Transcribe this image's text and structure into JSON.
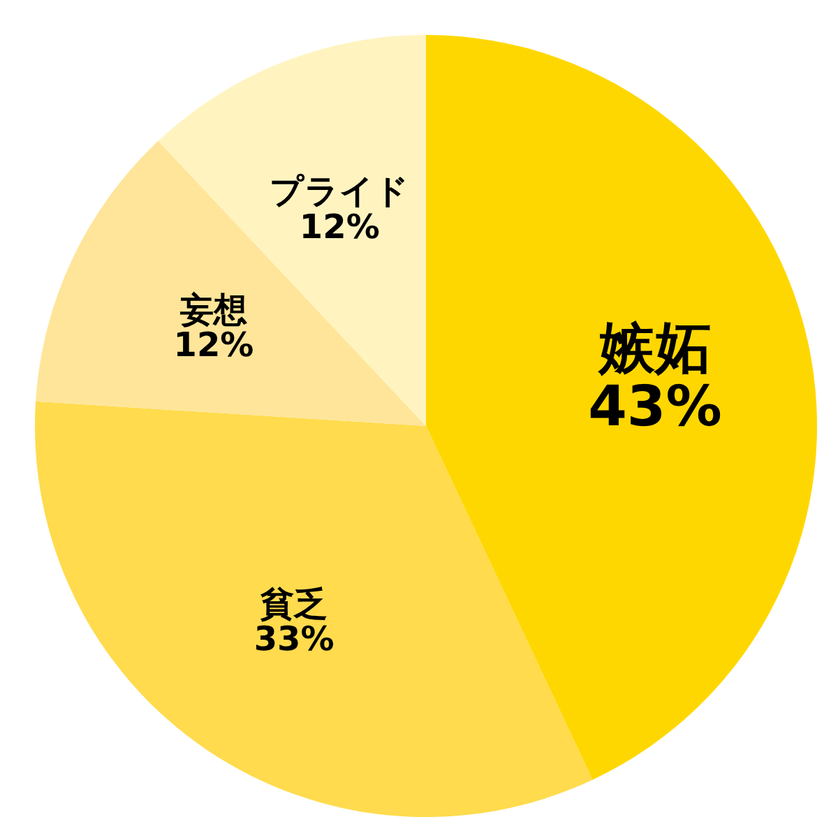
{
  "chart_data": {
    "type": "pie",
    "categories": [
      "嫉妬",
      "貧乏",
      "妄想",
      "プライド"
    ],
    "values": [
      43,
      33,
      12,
      12
    ],
    "value_labels": [
      "43%",
      "33%",
      "12%",
      "12%"
    ],
    "colors": [
      "#ffd700",
      "#ffdb4d",
      "#ffe599",
      "#fff4c0"
    ],
    "legend": false
  }
}
